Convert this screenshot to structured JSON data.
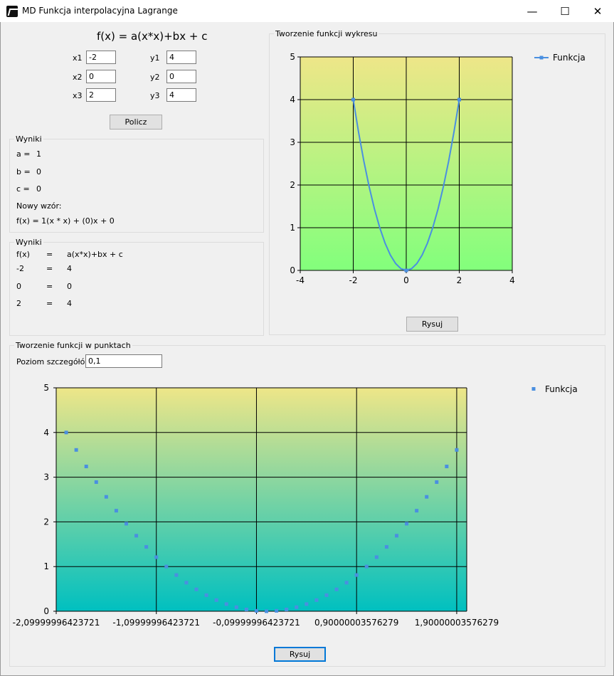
{
  "window": {
    "title": "MD Funkcja interpolacyjna Lagrange",
    "minimize": "—",
    "maximize": "☐",
    "close": "✕"
  },
  "formula": "f(x) = a(x*x)+bx + c",
  "inputs": {
    "x1_label": "x1",
    "x1": "-2",
    "x2_label": "x2",
    "x2": "0",
    "x3_label": "x3",
    "x3": "2",
    "y1_label": "y1",
    "y1": "4",
    "y2_label": "y2",
    "y2": "0",
    "y3_label": "y3",
    "y3": "4"
  },
  "calc_button": "Policz",
  "results1": {
    "title": "Wyniki",
    "a_label": "a =",
    "a": "1",
    "b_label": "b =",
    "b": "0",
    "c_label": "c =",
    "c": "0",
    "new_formula_label": "Nowy wzór:",
    "new_formula": "f(x) = 1(x * x) + (0)x + 0"
  },
  "results2": {
    "title": "Wyniki",
    "header": {
      "x": "f(x)",
      "eq": "=",
      "expr": "a(x*x)+bx + c"
    },
    "rows": [
      {
        "x": "-2",
        "eq": "=",
        "y": "4"
      },
      {
        "x": "0",
        "eq": "=",
        "y": "0"
      },
      {
        "x": "2",
        "eq": "=",
        "y": "4"
      }
    ]
  },
  "chart_group": {
    "title": "Tworzenie funkcji wykresu",
    "button": "Rysuj"
  },
  "points_group": {
    "title": "Tworzenie funkcji w punktach",
    "detail_label": "Poziom szczegółów",
    "detail_value": "0,1",
    "button": "Rysuj"
  },
  "chart_data": [
    {
      "type": "line",
      "series": [
        {
          "name": "Funkcja",
          "x": [
            -2,
            -1.8,
            -1.6,
            -1.4,
            -1.2,
            -1,
            -0.8,
            -0.6,
            -0.4,
            -0.2,
            0,
            0.2,
            0.4,
            0.6,
            0.8,
            1,
            1.2,
            1.4,
            1.6,
            1.8,
            2
          ],
          "y": [
            4,
            3.24,
            2.56,
            1.96,
            1.44,
            1,
            0.64,
            0.36,
            0.16,
            0.04,
            0,
            0.04,
            0.16,
            0.36,
            0.64,
            1,
            1.44,
            1.96,
            2.56,
            3.24,
            4
          ],
          "markers_x": [
            -2,
            0,
            2
          ],
          "markers_y": [
            4,
            0,
            4
          ]
        }
      ],
      "xlim": [
        -4,
        4
      ],
      "ylim": [
        0,
        5
      ],
      "xticks": [
        "-4",
        "-2",
        "0",
        "2",
        "4"
      ],
      "yticks": [
        "0",
        "1",
        "2",
        "3",
        "4",
        "5"
      ],
      "grid": true,
      "legend": "top-right",
      "colors": {
        "line": "#4a8fe0",
        "bg_top": "#eee688",
        "bg_bottom": "#82ff7c"
      }
    },
    {
      "type": "scatter",
      "series": [
        {
          "name": "Funkcja",
          "x": [
            -2,
            -1.9,
            -1.8,
            -1.7,
            -1.6,
            -1.5,
            -1.4,
            -1.3,
            -1.2,
            -1.1,
            -1,
            -0.9,
            -0.8,
            -0.7,
            -0.6,
            -0.5,
            -0.4,
            -0.3,
            -0.2,
            -0.1,
            0,
            0.1,
            0.2,
            0.3,
            0.4,
            0.5,
            0.6,
            0.7,
            0.8,
            0.9,
            1,
            1.1,
            1.2,
            1.3,
            1.4,
            1.5,
            1.6,
            1.7,
            1.8,
            1.9
          ],
          "y": [
            4,
            3.61,
            3.24,
            2.89,
            2.56,
            2.25,
            1.96,
            1.69,
            1.44,
            1.21,
            1,
            0.81,
            0.64,
            0.49,
            0.36,
            0.25,
            0.16,
            0.09,
            0.04,
            0.01,
            0,
            0.01,
            0.04,
            0.09,
            0.16,
            0.25,
            0.36,
            0.49,
            0.64,
            0.81,
            1,
            1.21,
            1.44,
            1.69,
            1.96,
            2.25,
            2.56,
            2.89,
            3.24,
            3.61
          ]
        }
      ],
      "xlim": [
        -2.09999996423721,
        2.0
      ],
      "xtick_values": [
        -2.09999996423721,
        -1.09999996423721,
        -0.09999996423721,
        0.90000003576279,
        1.90000003576279
      ],
      "xticks": [
        "-2,09999996423721",
        "-1,09999996423721",
        "-0,09999996423721",
        "0,90000003576279",
        "1,90000003576279"
      ],
      "ylim": [
        0,
        5
      ],
      "yticks": [
        "0",
        "1",
        "2",
        "3",
        "4",
        "5"
      ],
      "grid": true,
      "legend": "top-right",
      "colors": {
        "marker": "#4a8fe0",
        "bg_top": "#eee688",
        "bg_bottom": "#00c0c0"
      }
    }
  ]
}
